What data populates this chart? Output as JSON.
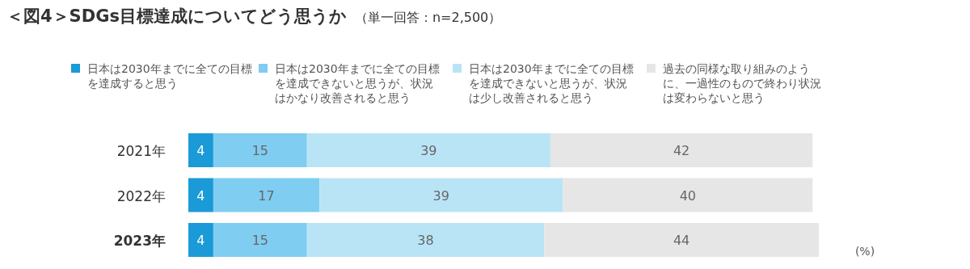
{
  "chart_data": {
    "type": "bar",
    "orientation": "horizontal",
    "stacked": true,
    "title": "＜図4＞SDGs目標達成についてどう思うか",
    "subtitle": "（単一回答：n=2,500）",
    "categories": [
      "2021年",
      "2022年",
      "2023年"
    ],
    "series": [
      {
        "name": "日本は2030年までに全ての目標を達成すると思う",
        "color": "#1a9ad6",
        "values": [
          4,
          4,
          4
        ]
      },
      {
        "name": "日本は2030年までに全ての目標を達成できないと思うが、状況はかなり改善されると思う",
        "color": "#7fcdf0",
        "values": [
          15,
          17,
          15
        ]
      },
      {
        "name": "日本は2030年までに全ての目標を達成できないと思うが、状況は少し改善されると思う",
        "color": "#b9e4f6",
        "values": [
          39,
          39,
          38
        ]
      },
      {
        "name": "過去の同様な取り組みのように、一過性のもので終わり状況は変わらないと思う",
        "color": "#e6e6e6",
        "values": [
          42,
          40,
          44
        ]
      }
    ],
    "xlim": [
      0,
      101
    ],
    "data_labels": true,
    "legend": "top",
    "annotations": [
      "(%)"
    ]
  }
}
